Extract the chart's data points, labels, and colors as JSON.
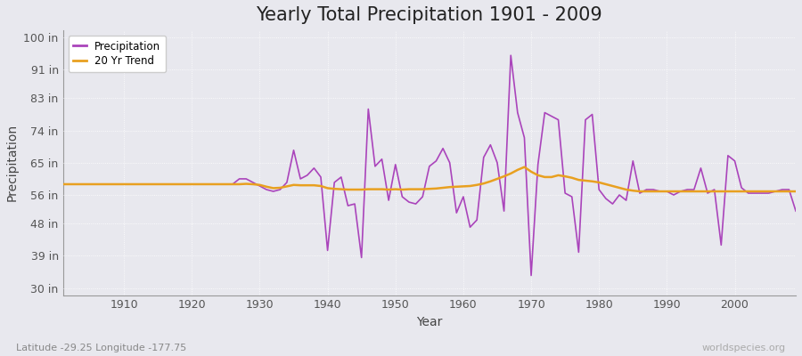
{
  "title": "Yearly Total Precipitation 1901 - 2009",
  "xlabel": "Year",
  "ylabel": "Precipitation",
  "x_start": 1901,
  "x_end": 2009,
  "yticks": [
    30,
    39,
    48,
    56,
    65,
    74,
    83,
    91,
    100
  ],
  "ytick_labels": [
    "30 in",
    "39 in",
    "48 in",
    "56 in",
    "65 in",
    "74 in",
    "83 in",
    "91 in",
    "100 in"
  ],
  "xlim": [
    1901,
    2009
  ],
  "ylim": [
    28,
    102
  ],
  "xticks": [
    1910,
    1920,
    1930,
    1940,
    1950,
    1960,
    1970,
    1980,
    1990,
    2000
  ],
  "precip_color": "#AA44BB",
  "trend_color": "#E8A020",
  "background_color": "#E8E8EE",
  "fig_color": "#E8E8EE",
  "grid_color": "#ffffff",
  "title_fontsize": 15,
  "axis_label_fontsize": 10,
  "tick_fontsize": 9,
  "subtitle": "Latitude -29.25 Longitude -177.75",
  "watermark": "worldspecies.org",
  "precip_values": [
    59.0,
    59.0,
    59.0,
    59.0,
    59.0,
    59.0,
    59.0,
    59.0,
    59.0,
    59.0,
    59.0,
    59.0,
    59.0,
    59.0,
    59.0,
    59.0,
    59.0,
    59.0,
    59.0,
    59.0,
    59.0,
    59.0,
    59.0,
    59.0,
    59.0,
    59.0,
    60.5,
    60.5,
    59.5,
    58.5,
    57.5,
    57.0,
    57.5,
    59.5,
    68.5,
    60.5,
    61.5,
    63.5,
    61.0,
    40.5,
    59.5,
    61.0,
    53.0,
    53.5,
    38.5,
    80.0,
    64.0,
    66.0,
    54.5,
    64.5,
    55.5,
    54.0,
    53.5,
    55.5,
    64.0,
    65.5,
    69.0,
    65.0,
    51.0,
    55.5,
    47.0,
    49.0,
    66.5,
    70.0,
    65.0,
    51.5,
    95.0,
    79.0,
    72.0,
    33.5,
    64.5,
    79.0,
    78.0,
    77.0,
    56.5,
    55.5,
    40.0,
    77.0,
    78.5,
    57.5,
    55.0,
    53.5,
    56.0,
    54.5,
    65.5,
    56.5,
    57.5,
    57.5,
    57.0,
    57.0,
    56.0,
    57.0,
    57.5,
    57.5,
    63.5,
    56.5,
    57.5,
    42.0,
    67.0,
    65.5,
    58.0,
    56.5,
    56.5,
    56.5,
    56.5,
    57.0,
    57.5,
    57.5,
    51.5
  ],
  "trend_values": [
    59.0,
    59.0,
    59.0,
    59.0,
    59.0,
    59.0,
    59.0,
    59.0,
    59.0,
    59.0,
    59.0,
    59.0,
    59.0,
    59.0,
    59.0,
    59.0,
    59.0,
    59.0,
    59.0,
    59.0,
    59.0,
    59.0,
    59.0,
    59.0,
    59.0,
    59.0,
    59.0,
    59.1,
    59.0,
    58.8,
    58.3,
    57.9,
    58.0,
    58.4,
    58.8,
    58.7,
    58.7,
    58.7,
    58.5,
    57.9,
    57.7,
    57.6,
    57.5,
    57.5,
    57.5,
    57.6,
    57.6,
    57.6,
    57.5,
    57.6,
    57.5,
    57.6,
    57.6,
    57.6,
    57.7,
    57.8,
    58.0,
    58.2,
    58.3,
    58.4,
    58.5,
    58.8,
    59.2,
    59.8,
    60.5,
    61.2,
    62.0,
    63.0,
    63.8,
    62.5,
    61.5,
    61.0,
    61.0,
    61.5,
    61.2,
    60.8,
    60.2,
    60.0,
    59.8,
    59.5,
    59.0,
    58.5,
    58.0,
    57.5,
    57.2,
    57.0,
    57.0,
    57.0,
    57.0,
    57.0,
    57.0,
    57.0,
    57.0,
    57.0,
    57.0,
    57.0,
    57.0,
    57.0,
    57.0,
    57.0,
    57.0,
    57.0,
    57.0,
    57.0,
    57.0,
    57.0,
    57.0,
    57.0,
    57.0
  ]
}
